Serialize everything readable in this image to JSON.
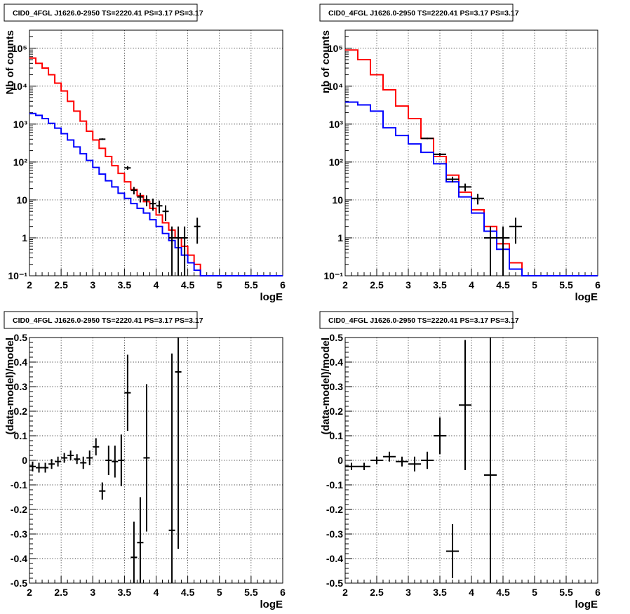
{
  "chart_data": [
    {
      "type": "line",
      "title": "CID0_4FGL J1626.0-2950 TS=2220.41 PS=3.17 PS=3.17",
      "xlabel": "logE",
      "ylabel": "Nb of counts",
      "yscale": "log",
      "xlim": [
        2,
        6
      ],
      "ylim": [
        0.1,
        300000
      ],
      "grid": true,
      "x_ticks": [
        "2",
        "2.5",
        "3",
        "3.5",
        "4",
        "4.5",
        "5",
        "5.5",
        "6"
      ],
      "y_ticks": [
        "10⁻¹",
        "1",
        "10",
        "10²",
        "10³",
        "10⁴",
        "10⁵"
      ],
      "series": [
        {
          "style": "step",
          "color": "#ff0000",
          "edges": [
            2.0,
            2.1,
            2.2,
            2.3,
            2.4,
            2.5,
            2.6,
            2.7,
            2.8,
            2.9,
            3.0,
            3.1,
            3.2,
            3.3,
            3.4,
            3.5,
            3.6,
            3.7,
            3.8,
            3.9,
            4.0,
            4.1,
            4.2,
            4.3,
            4.4,
            4.5,
            4.6,
            4.7,
            4.8,
            4.9,
            5.0,
            5.1,
            5.2,
            5.3,
            5.4,
            5.5,
            5.6,
            5.7,
            5.8,
            5.9,
            6.0
          ],
          "values": [
            55000,
            40000,
            30000,
            20000,
            12000,
            7500,
            4000,
            2200,
            1200,
            650,
            380,
            230,
            140,
            80,
            50,
            30,
            19,
            13,
            9,
            6,
            4,
            2.5,
            1.6,
            1.0,
            0.6,
            0.35,
            0.2,
            0.1,
            0.1,
            0.1,
            0.1,
            0.1,
            0.1,
            0.1,
            0.1,
            0.1,
            0.1,
            0.1,
            0.1,
            0.1
          ]
        },
        {
          "style": "step",
          "color": "#0000ff",
          "edges": [
            2.0,
            2.1,
            2.2,
            2.3,
            2.4,
            2.5,
            2.6,
            2.7,
            2.8,
            2.9,
            3.0,
            3.1,
            3.2,
            3.3,
            3.4,
            3.5,
            3.6,
            3.7,
            3.8,
            3.9,
            4.0,
            4.1,
            4.2,
            4.3,
            4.4,
            4.5,
            4.6,
            4.7,
            4.8,
            4.9,
            5.0,
            5.1,
            5.2,
            5.3,
            5.4,
            5.5,
            5.6,
            5.7,
            5.8,
            5.9,
            6.0
          ],
          "values": [
            1900,
            1700,
            1400,
            1050,
            780,
            560,
            380,
            250,
            165,
            110,
            72,
            48,
            32,
            22,
            15,
            11,
            8,
            6,
            4.5,
            3,
            2,
            1.3,
            0.85,
            0.55,
            0.35,
            0.22,
            0.14,
            0.1,
            0.1,
            0.1,
            0.1,
            0.1,
            0.1,
            0.1,
            0.1,
            0.1,
            0.1,
            0.1,
            0.1,
            0.1
          ]
        }
      ],
      "points": {
        "color": "#000000",
        "x": [
          3.15,
          3.55,
          3.65,
          3.75,
          3.85,
          3.95,
          4.05,
          4.15,
          4.25,
          4.35,
          4.45,
          4.65
        ],
        "y": [
          400,
          70,
          18,
          12,
          10,
          8,
          7,
          5,
          1,
          1,
          1,
          2
        ],
        "yerr_lo": [
          20,
          8,
          4,
          3.4,
          3.2,
          2.8,
          2.6,
          2.2,
          0.9,
          0.9,
          0.9,
          1.3
        ],
        "yerr_hi": [
          20,
          8,
          4,
          3.4,
          3.2,
          2.8,
          2.6,
          2.2,
          1.0,
          1.0,
          1.0,
          1.4
        ],
        "xerr": 0.05
      }
    },
    {
      "type": "line",
      "title": "CID0_4FGL J1626.0-2950 TS=2220.41 PS=3.17 PS=3.17",
      "xlabel": "logE",
      "ylabel": "nb of counts",
      "yscale": "log",
      "xlim": [
        2,
        6
      ],
      "ylim": [
        0.1,
        300000
      ],
      "grid": true,
      "x_ticks": [
        "2",
        "2.5",
        "3",
        "3.5",
        "4",
        "4.5",
        "5",
        "5.5",
        "6"
      ],
      "y_ticks": [
        "10⁻¹",
        "1",
        "10",
        "10²",
        "10³",
        "10⁴",
        "10⁵"
      ],
      "series": [
        {
          "style": "step",
          "color": "#ff0000",
          "edges": [
            2.0,
            2.2,
            2.4,
            2.6,
            2.8,
            3.0,
            3.2,
            3.4,
            3.6,
            3.8,
            4.0,
            4.2,
            4.4,
            4.6,
            4.8,
            5.0,
            5.2,
            5.4,
            5.6,
            5.8,
            6.0
          ],
          "values": [
            90000,
            50000,
            20000,
            8000,
            3000,
            1400,
            420,
            140,
            45,
            16,
            5.5,
            2.0,
            0.7,
            0.22,
            0.1,
            0.1,
            0.1,
            0.1,
            0.1,
            0.1
          ]
        },
        {
          "style": "step",
          "color": "#0000ff",
          "edges": [
            2.0,
            2.2,
            2.4,
            2.6,
            2.8,
            3.0,
            3.2,
            3.4,
            3.6,
            3.8,
            4.0,
            4.2,
            4.4,
            4.6,
            4.8,
            5.0,
            5.2,
            5.4,
            5.6,
            5.8,
            6.0
          ],
          "values": [
            3800,
            3200,
            2200,
            800,
            500,
            300,
            180,
            90,
            30,
            12,
            4.5,
            1.5,
            0.5,
            0.15,
            0.1,
            0.1,
            0.1,
            0.1,
            0.1,
            0.1
          ]
        }
      ],
      "points": {
        "color": "#000000",
        "x": [
          3.3,
          3.5,
          3.7,
          3.9,
          4.1,
          4.3,
          4.5,
          4.7
        ],
        "y": [
          420,
          160,
          35,
          22,
          11,
          1,
          1,
          2
        ],
        "yerr_lo": [
          20,
          13,
          6,
          5,
          3.4,
          0.9,
          0.9,
          1.3
        ],
        "yerr_hi": [
          20,
          13,
          6,
          5,
          3.4,
          1.0,
          1.0,
          1.4
        ],
        "xerr": 0.1
      }
    },
    {
      "type": "scatter",
      "title": "CID0_4FGL J1626.0-2950 TS=2220.41 PS=3.17 PS=3.17",
      "xlabel": "logE",
      "ylabel": "(data-model)/model",
      "xlim": [
        2,
        6
      ],
      "ylim": [
        -0.5,
        0.5
      ],
      "grid": true,
      "x_ticks": [
        "2",
        "2.5",
        "3",
        "3.5",
        "4",
        "4.5",
        "5",
        "5.5",
        "6"
      ],
      "y_ticks": [
        "-0.5",
        "-0.4",
        "-0.3",
        "-0.2",
        "-0.1",
        "0",
        "0.1",
        "0.2",
        "0.3",
        "0.4",
        "0.5"
      ],
      "points": {
        "color": "#000000",
        "x": [
          2.05,
          2.15,
          2.25,
          2.35,
          2.45,
          2.55,
          2.65,
          2.75,
          2.85,
          2.95,
          3.05,
          3.15,
          3.25,
          3.35,
          3.45,
          3.55,
          3.65,
          3.75,
          3.85,
          4.25,
          4.35
        ],
        "y": [
          -0.025,
          -0.03,
          -0.03,
          -0.015,
          -0.005,
          0.01,
          0.02,
          0.005,
          -0.01,
          0.01,
          0.055,
          -0.125,
          0.0,
          -0.005,
          0.0,
          0.275,
          -0.395,
          -0.335,
          0.01,
          -0.285,
          0.36
        ],
        "yerr": [
          0.02,
          0.02,
          0.02,
          0.02,
          0.02,
          0.02,
          0.02,
          0.02,
          0.025,
          0.03,
          0.035,
          0.035,
          0.06,
          0.065,
          0.105,
          0.155,
          0.145,
          0.185,
          0.3,
          0.72,
          0.72
        ],
        "xerr": 0.05
      }
    },
    {
      "type": "scatter",
      "title": "CID0_4FGL J1626.0-2950 TS=2220.41 PS=3.17 PS=3.17",
      "xlabel": "logE",
      "ylabel": "(data-model)/model",
      "xlim": [
        2,
        6
      ],
      "ylim": [
        -0.5,
        0.5
      ],
      "grid": true,
      "x_ticks": [
        "2",
        "2.5",
        "3",
        "3.5",
        "4",
        "4.5",
        "5",
        "5.5",
        "6"
      ],
      "y_ticks": [
        "-0.5",
        "-0.4",
        "-0.3",
        "-0.2",
        "-0.1",
        "0",
        "0.1",
        "0.2",
        "0.3",
        "0.4",
        "0.5"
      ],
      "points": {
        "color": "#000000",
        "x": [
          2.1,
          2.3,
          2.5,
          2.7,
          2.9,
          3.1,
          3.3,
          3.5,
          3.7,
          3.9,
          4.3
        ],
        "y": [
          -0.025,
          -0.025,
          0.0,
          0.015,
          -0.005,
          -0.015,
          0.0,
          0.1,
          -0.37,
          0.225,
          -0.06
        ],
        "yerr": [
          0.015,
          0.015,
          0.015,
          0.02,
          0.02,
          0.03,
          0.035,
          0.075,
          0.11,
          0.265,
          0.62
        ],
        "xerr": 0.1
      }
    }
  ]
}
